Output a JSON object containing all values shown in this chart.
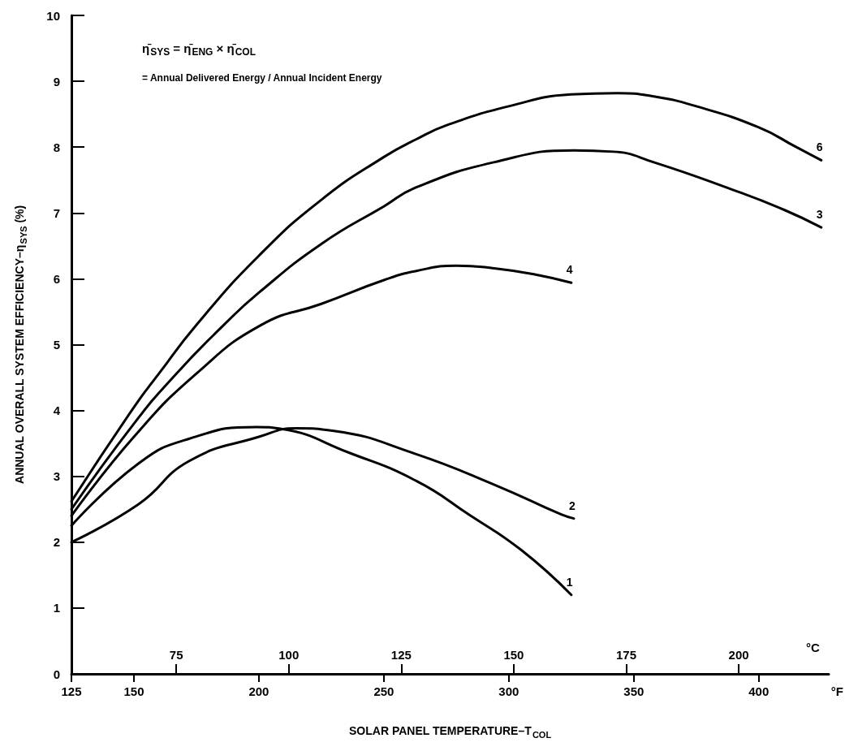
{
  "chart_data": {
    "type": "line",
    "xlabel": "SOLAR PANEL TEMPERATURE–T$_{COL}$",
    "ylabel": "ANNUAL OVERALL SYSTEM EFFICIENCY–η$_{SYS}$ (%)",
    "x2label": "°C",
    "xlim": [
      125,
      428
    ],
    "xticks": [
      125,
      150,
      200,
      250,
      300,
      350,
      400
    ],
    "x2lim": [
      51.7,
      220
    ],
    "x2ticks": [
      75,
      100,
      125,
      150,
      175,
      200
    ],
    "ylim": [
      0,
      10
    ],
    "yticks": [
      0,
      1,
      2,
      3,
      4,
      5,
      6,
      7,
      8,
      9,
      10
    ],
    "grid": false,
    "legend": false,
    "marker": "none",
    "line_style": "solid",
    "annotations": [
      "η̄$_{SYS}$ = η̄$_{ENG}$ × η̄$_{COL}$",
      "= Annual Delivered Energy / Annual Incident Energy",
      "°F"
    ],
    "series": [
      {
        "name": "6",
        "color": "#000000",
        "x": [
          125,
          150,
          160,
          175,
          200,
          225,
          250,
          263,
          275,
          300,
          325,
          343,
          358,
          375,
          400,
          415,
          425
        ],
        "values": [
          2.62,
          4.05,
          4.56,
          5.3,
          6.35,
          7.2,
          7.85,
          8.12,
          8.33,
          8.62,
          8.8,
          8.82,
          8.77,
          8.62,
          8.3,
          8.0,
          7.8
        ]
      },
      {
        "name": "3",
        "color": "#000000",
        "x": [
          125,
          150,
          167,
          186,
          200,
          225,
          250,
          263,
          294,
          326,
          342,
          358,
          389,
          410,
          425
        ],
        "values": [
          2.5,
          3.8,
          4.56,
          5.3,
          5.79,
          6.53,
          7.1,
          7.39,
          7.77,
          7.95,
          7.93,
          7.77,
          7.36,
          7.05,
          6.78
        ]
      },
      {
        "name": "4",
        "color": "#000000",
        "x": [
          125,
          150,
          175,
          201,
          225,
          250,
          263,
          279,
          294,
          310,
          325
        ],
        "values": [
          2.4,
          3.6,
          4.56,
          5.3,
          5.62,
          5.98,
          6.12,
          6.2,
          6.16,
          6.07,
          5.94
        ]
      },
      {
        "name": "2",
        "color": "#000000",
        "x": [
          125,
          152,
          172,
          200,
          215,
          230,
          262,
          295,
          321,
          326
        ],
        "values": [
          2.0,
          2.58,
          3.23,
          3.6,
          3.73,
          3.69,
          3.35,
          2.86,
          2.42,
          2.36
        ]
      },
      {
        "name": "1",
        "color": "#000000",
        "x": [
          125,
          152,
          172,
          199,
          209,
          236,
          263,
          284,
          305,
          325
        ],
        "values": [
          2.25,
          3.2,
          3.57,
          3.75,
          3.72,
          3.36,
          2.93,
          2.42,
          1.88,
          1.2
        ]
      }
    ]
  }
}
